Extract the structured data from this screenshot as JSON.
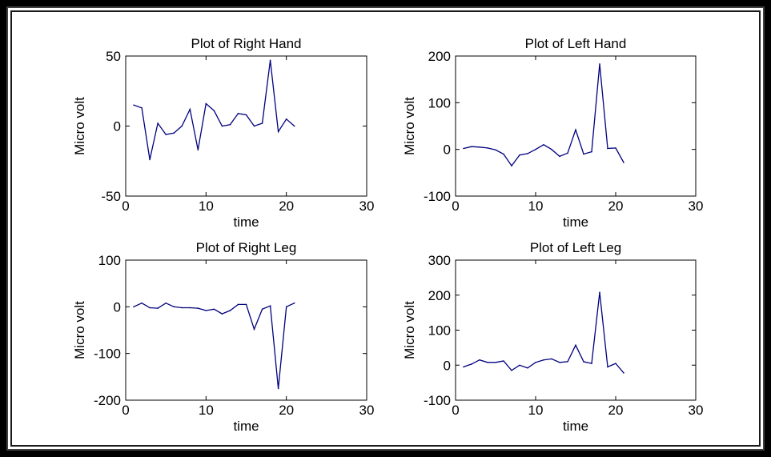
{
  "chart_data": [
    {
      "type": "line",
      "title": "Plot of Right Hand",
      "xlabel": "time",
      "ylabel": "Micro volt",
      "xlim": [
        0,
        30
      ],
      "ylim": [
        -50,
        50
      ],
      "xticks": [
        "0",
        "10",
        "20",
        "30"
      ],
      "yticks": [
        "-50",
        "0",
        "50"
      ],
      "grid": false,
      "line_color": "#00007f",
      "series": [
        {
          "x": [
            1,
            2,
            3,
            4,
            5,
            6,
            7,
            8,
            9,
            10,
            11,
            12,
            13,
            14,
            15,
            16,
            17,
            18,
            19,
            20,
            21
          ],
          "values": [
            15,
            13,
            -24,
            2,
            -6,
            -5,
            0,
            12,
            -17,
            16,
            11,
            0,
            1,
            9,
            8,
            0,
            2,
            47,
            -4,
            5,
            0
          ]
        }
      ]
    },
    {
      "type": "line",
      "title": "Plot of Left Hand",
      "xlabel": "time",
      "ylabel": "Micro volt",
      "xlim": [
        0,
        30
      ],
      "ylim": [
        -100,
        200
      ],
      "xticks": [
        "0",
        "10",
        "20",
        "30"
      ],
      "yticks": [
        "-100",
        "0",
        "100",
        "200"
      ],
      "grid": false,
      "line_color": "#00007f",
      "series": [
        {
          "x": [
            1,
            2,
            3,
            4,
            5,
            6,
            7,
            8,
            9,
            10,
            11,
            12,
            13,
            14,
            15,
            16,
            17,
            18,
            19,
            20,
            21
          ],
          "values": [
            2,
            6,
            5,
            3,
            -1,
            -10,
            -35,
            -12,
            -9,
            0,
            10,
            0,
            -15,
            -8,
            42,
            -10,
            -5,
            183,
            2,
            3,
            -28
          ]
        }
      ]
    },
    {
      "type": "line",
      "title": "Plot of Right Leg",
      "xlabel": "time",
      "ylabel": "Micro volt",
      "xlim": [
        0,
        30
      ],
      "ylim": [
        -200,
        100
      ],
      "xticks": [
        "0",
        "10",
        "20",
        "30"
      ],
      "yticks": [
        "-200",
        "-100",
        "0",
        "100"
      ],
      "grid": false,
      "line_color": "#00007f",
      "series": [
        {
          "x": [
            1,
            2,
            3,
            4,
            5,
            6,
            7,
            8,
            9,
            10,
            11,
            12,
            13,
            14,
            15,
            16,
            17,
            18,
            19,
            20,
            21
          ],
          "values": [
            0,
            8,
            -2,
            -3,
            8,
            0,
            -2,
            -2,
            -3,
            -8,
            -5,
            -15,
            -8,
            5,
            5,
            -48,
            -5,
            2,
            -175,
            0,
            8
          ]
        }
      ]
    },
    {
      "type": "line",
      "title": "Plot of Left Leg",
      "xlabel": "time",
      "ylabel": "Micro volt",
      "xlim": [
        0,
        30
      ],
      "ylim": [
        -100,
        300
      ],
      "xticks": [
        "0",
        "10",
        "20",
        "30"
      ],
      "yticks": [
        "-100",
        "0",
        "100",
        "200",
        "300"
      ],
      "grid": false,
      "line_color": "#00007f",
      "series": [
        {
          "x": [
            1,
            2,
            3,
            4,
            5,
            6,
            7,
            8,
            9,
            10,
            11,
            12,
            13,
            14,
            15,
            16,
            17,
            18,
            19,
            20,
            21
          ],
          "values": [
            -5,
            3,
            15,
            8,
            8,
            12,
            -15,
            0,
            -8,
            8,
            15,
            18,
            8,
            10,
            57,
            10,
            5,
            208,
            -5,
            5,
            -22
          ]
        }
      ]
    }
  ]
}
